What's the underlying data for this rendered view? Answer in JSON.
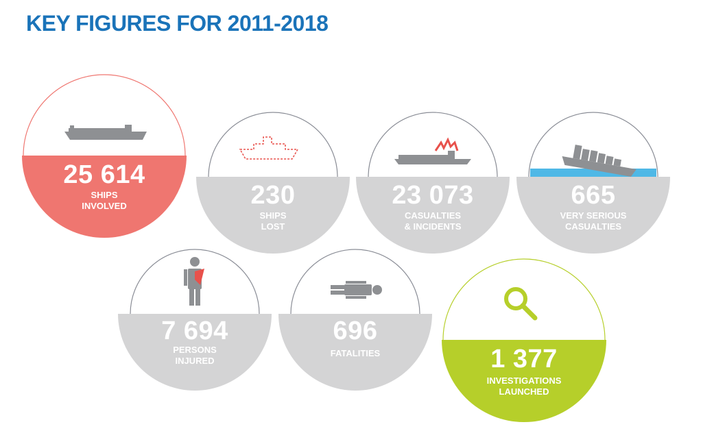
{
  "title": "KEY FIGURES FOR 2011-2018",
  "colors": {
    "title": "#1a73b9",
    "ships_involved": "#ef7670",
    "neutral": "#d4d4d5",
    "investigations": "#b6cf2a",
    "outline_red": "#ef7670",
    "outline_grey": "#8a8d96",
    "outline_green": "#b6cf2a",
    "icon_grey": "#8e9093",
    "icon_red": "#e8514b",
    "water": "#4fb8e6"
  },
  "stats": [
    {
      "value": "25 614",
      "label": "SHIPS\nINVOLVED",
      "icon": "cargo-ship-icon"
    },
    {
      "value": "230",
      "label": "SHIPS\nLOST",
      "icon": "ship-outline-icon"
    },
    {
      "value": "23 073",
      "label": "CASUALTIES\n& INCIDENTS",
      "icon": "damaged-ship-icon"
    },
    {
      "value": "665",
      "label": "VERY SERIOUS\nCASUALTIES",
      "icon": "sinking-ship-icon"
    },
    {
      "value": "7 694",
      "label": "PERSONS\nINJURED",
      "icon": "injured-person-icon"
    },
    {
      "value": "696",
      "label": "FATALITIES",
      "icon": "fatality-icon"
    },
    {
      "value": "1 377",
      "label": "INVESTIGATIONS\nLAUNCHED",
      "icon": "magnifier-icon"
    }
  ]
}
